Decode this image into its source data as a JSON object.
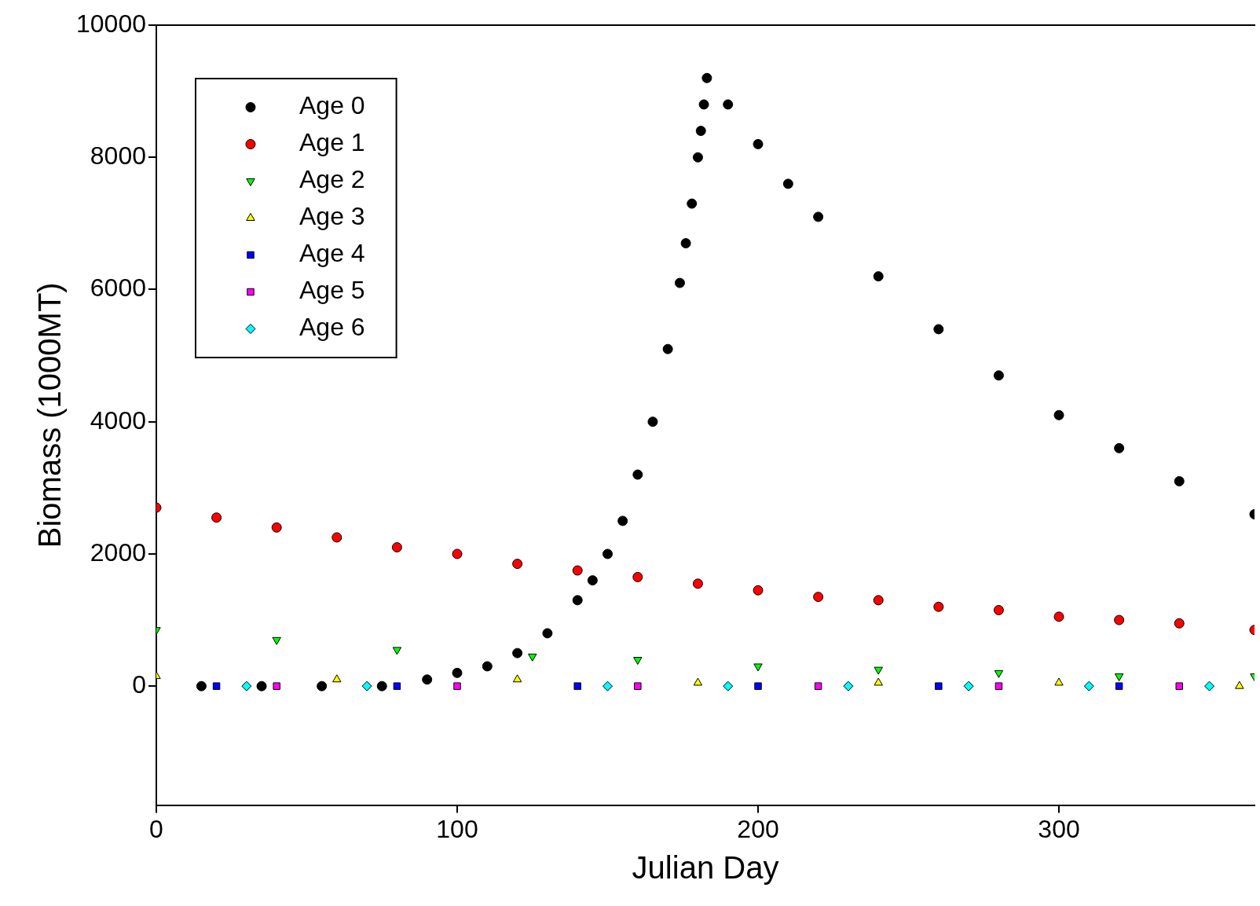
{
  "chart_data": {
    "type": "scatter",
    "xlabel": "Julian Day",
    "ylabel": "Biomass (1000MT)",
    "xlim": [
      0,
      365
    ],
    "xticks": [
      0,
      100,
      200,
      300
    ],
    "ylim": [
      -1800,
      10000
    ],
    "yticks": [
      0,
      2000,
      4000,
      6000,
      8000,
      10000
    ],
    "grid": false,
    "legend": "top left",
    "series": [
      {
        "name": "Age 0",
        "color": "#000000",
        "marker": "circle",
        "x": [
          15,
          35,
          55,
          75,
          90,
          100,
          110,
          120,
          130,
          140,
          145,
          150,
          155,
          160,
          165,
          170,
          174,
          176,
          178,
          180,
          181,
          182,
          183,
          190,
          200,
          210,
          220,
          240,
          260,
          280,
          300,
          320,
          340,
          365
        ],
        "values": [
          0,
          0,
          0,
          0,
          100,
          200,
          300,
          500,
          800,
          1300,
          1600,
          2000,
          2500,
          3200,
          4000,
          5100,
          6100,
          6700,
          7300,
          8000,
          8400,
          8800,
          9200,
          8800,
          8200,
          7600,
          7100,
          6200,
          5400,
          4700,
          4100,
          3600,
          3100,
          2600
        ]
      },
      {
        "name": "Age 1",
        "color": "#ff0000",
        "marker": "circle",
        "x": [
          0,
          20,
          40,
          60,
          80,
          100,
          120,
          140,
          160,
          180,
          200,
          220,
          240,
          260,
          280,
          300,
          320,
          340,
          365
        ],
        "values": [
          2700,
          2550,
          2400,
          2250,
          2100,
          2000,
          1850,
          1750,
          1650,
          1550,
          1450,
          1350,
          1300,
          1200,
          1150,
          1050,
          1000,
          950,
          850
        ]
      },
      {
        "name": "Age 2",
        "color": "#00ff00",
        "marker": "triangle_down",
        "x": [
          0,
          40,
          80,
          125,
          160,
          200,
          240,
          280,
          320,
          365
        ],
        "values": [
          850,
          700,
          550,
          450,
          400,
          300,
          250,
          200,
          150,
          150
        ]
      },
      {
        "name": "Age 3",
        "color": "#ffff00",
        "marker": "triangle",
        "x": [
          0,
          60,
          120,
          180,
          240,
          300,
          360
        ],
        "values": [
          150,
          100,
          100,
          50,
          50,
          50,
          0
        ]
      },
      {
        "name": "Age 4",
        "color": "#0000ff",
        "marker": "square",
        "x": [
          20,
          80,
          140,
          200,
          260,
          320
        ],
        "values": [
          0,
          0,
          0,
          0,
          0,
          0
        ]
      },
      {
        "name": "Age 5",
        "color": "#ff00ff",
        "marker": "square",
        "x": [
          40,
          100,
          160,
          220,
          280,
          340
        ],
        "values": [
          0,
          0,
          0,
          0,
          0,
          0
        ]
      },
      {
        "name": "Age 6",
        "color": "#00ffff",
        "marker": "diamond",
        "x": [
          30,
          70,
          150,
          190,
          230,
          270,
          310,
          350
        ],
        "values": [
          0,
          0,
          0,
          0,
          0,
          0,
          0,
          0
        ]
      }
    ]
  }
}
